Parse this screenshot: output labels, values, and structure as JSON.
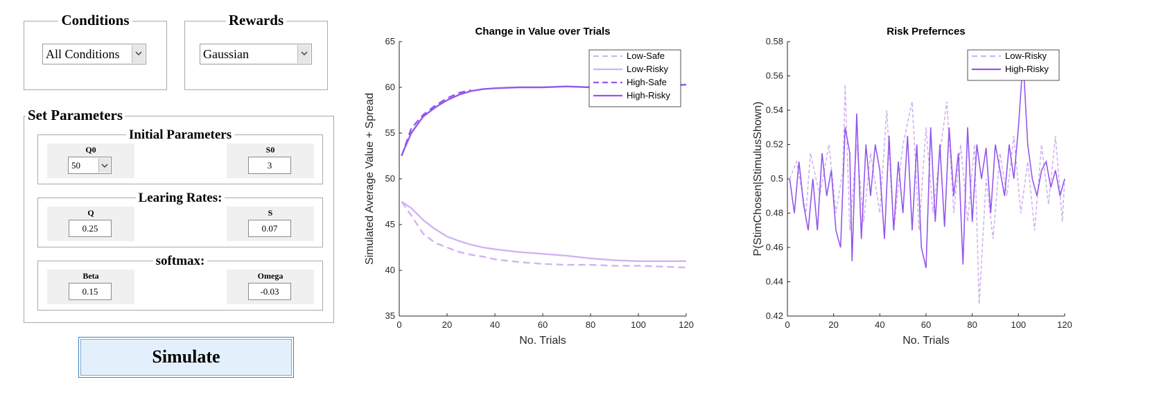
{
  "conditions": {
    "title": "Conditions",
    "selected": "All Conditions"
  },
  "rewards": {
    "title": "Rewards",
    "selected": "Gaussian"
  },
  "set_parameters": {
    "title": "Set Parameters",
    "initial": {
      "title": "Initial Parameters",
      "q0_label": "Q0",
      "q0_value": "50",
      "s0_label": "S0",
      "s0_value": "3"
    },
    "learning": {
      "title": "Learing Rates:",
      "q_label": "Q",
      "q_value": "0.25",
      "s_label": "S",
      "s_value": "0.07"
    },
    "softmax": {
      "title": "softmax:",
      "beta_label": "Beta",
      "beta_value": "0.15",
      "omega_label": "Omega",
      "omega_value": "-0.03"
    }
  },
  "simulate_label": "Simulate",
  "colors": {
    "light": "#d0b3f2",
    "dark": "#9457eb"
  },
  "chart_data": [
    {
      "type": "line",
      "title": "Change in Value over Trials",
      "xlabel": "No. Trials",
      "ylabel": "Simulated Average Value + Spread",
      "xlim": [
        0,
        120
      ],
      "ylim": [
        35,
        65
      ],
      "xticks": [
        "0",
        "20",
        "40",
        "60",
        "80",
        "100",
        "120"
      ],
      "yticks": [
        "35",
        "40",
        "45",
        "50",
        "55",
        "60",
        "65"
      ],
      "legend_position": "top-right",
      "series": [
        {
          "name": "Low-Safe",
          "style": "dashed",
          "color": "#d0b3f2",
          "x": [
            1,
            5,
            10,
            15,
            20,
            25,
            30,
            35,
            40,
            50,
            60,
            70,
            80,
            90,
            100,
            110,
            120
          ],
          "y": [
            47.5,
            46.0,
            44.0,
            43.0,
            42.5,
            42.0,
            41.7,
            41.5,
            41.2,
            40.9,
            40.7,
            40.6,
            40.6,
            40.5,
            40.5,
            40.4,
            40.3
          ]
        },
        {
          "name": "Low-Risky",
          "style": "solid",
          "color": "#d0b3f2",
          "x": [
            1,
            5,
            10,
            15,
            20,
            25,
            30,
            35,
            40,
            50,
            60,
            70,
            80,
            90,
            100,
            110,
            120
          ],
          "y": [
            47.5,
            46.8,
            45.5,
            44.5,
            43.7,
            43.2,
            42.8,
            42.5,
            42.3,
            42.0,
            41.8,
            41.6,
            41.3,
            41.1,
            41.0,
            41.0,
            41.0
          ]
        },
        {
          "name": "High-Safe",
          "style": "dashed",
          "color": "#9457eb",
          "x": [
            1,
            5,
            10,
            15,
            20,
            25,
            30
          ],
          "y": [
            52.5,
            55.5,
            57.0,
            58.0,
            58.8,
            59.4,
            59.7
          ]
        },
        {
          "name": "High-Risky",
          "style": "solid",
          "color": "#9457eb",
          "x": [
            1,
            5,
            10,
            15,
            20,
            25,
            30,
            35,
            40,
            50,
            60,
            70,
            80,
            90,
            100,
            110,
            120
          ],
          "y": [
            52.6,
            55.0,
            56.8,
            57.8,
            58.6,
            59.2,
            59.6,
            59.8,
            59.9,
            60.0,
            60.0,
            60.1,
            60.0,
            60.0,
            60.1,
            60.1,
            60.3
          ]
        }
      ]
    },
    {
      "type": "line",
      "title": "Risk Prefernces",
      "xlabel": "No. Trials",
      "ylabel": "P(StimChosen|StimulusShown)",
      "xlim": [
        0,
        120
      ],
      "ylim": [
        0.42,
        0.58
      ],
      "xticks": [
        "0",
        "20",
        "40",
        "60",
        "80",
        "100",
        "120"
      ],
      "yticks": [
        "0.42",
        "0.44",
        "0.46",
        "0.48",
        "0.5",
        "0.52",
        "0.54",
        "0.56",
        "0.58"
      ],
      "legend_position": "top-right",
      "series": [
        {
          "name": "Low-Risky",
          "style": "dashed",
          "color": "#d0b3f2",
          "x": [
            1,
            4,
            8,
            10,
            14,
            18,
            21,
            24,
            25,
            27,
            30,
            33,
            36,
            40,
            43,
            46,
            50,
            54,
            57,
            60,
            63,
            66,
            69,
            72,
            75,
            78,
            81,
            83,
            86,
            89,
            92,
            95,
            98,
            101,
            104,
            107,
            110,
            113,
            116,
            119,
            120
          ],
          "y": [
            0.5,
            0.51,
            0.48,
            0.515,
            0.49,
            0.52,
            0.48,
            0.505,
            0.555,
            0.47,
            0.52,
            0.475,
            0.515,
            0.48,
            0.54,
            0.47,
            0.52,
            0.545,
            0.47,
            0.53,
            0.48,
            0.515,
            0.545,
            0.48,
            0.52,
            0.475,
            0.52,
            0.427,
            0.5,
            0.465,
            0.515,
            0.49,
            0.525,
            0.48,
            0.51,
            0.47,
            0.52,
            0.485,
            0.525,
            0.475,
            0.5
          ]
        },
        {
          "name": "High-Risky",
          "style": "solid",
          "color": "#9457eb",
          "x": [
            1,
            3,
            5,
            7,
            9,
            11,
            13,
            15,
            17,
            19,
            21,
            23,
            25,
            27,
            28,
            30,
            32,
            34,
            36,
            38,
            40,
            42,
            44,
            46,
            48,
            50,
            52,
            54,
            56,
            58,
            60,
            62,
            64,
            66,
            68,
            70,
            72,
            74,
            76,
            78,
            80,
            82,
            84,
            86,
            88,
            90,
            92,
            94,
            96,
            98,
            100,
            102,
            104,
            106,
            108,
            110,
            112,
            114,
            116,
            118,
            120
          ],
          "y": [
            0.5,
            0.48,
            0.51,
            0.485,
            0.47,
            0.5,
            0.47,
            0.515,
            0.49,
            0.505,
            0.47,
            0.46,
            0.53,
            0.515,
            0.452,
            0.538,
            0.465,
            0.52,
            0.49,
            0.52,
            0.505,
            0.465,
            0.525,
            0.47,
            0.51,
            0.48,
            0.525,
            0.47,
            0.52,
            0.46,
            0.448,
            0.53,
            0.475,
            0.52,
            0.472,
            0.53,
            0.49,
            0.515,
            0.45,
            0.53,
            0.475,
            0.52,
            0.5,
            0.518,
            0.48,
            0.52,
            0.505,
            0.49,
            0.52,
            0.5,
            0.53,
            0.57,
            0.52,
            0.5,
            0.49,
            0.505,
            0.51,
            0.495,
            0.505,
            0.49,
            0.5
          ]
        }
      ]
    }
  ]
}
